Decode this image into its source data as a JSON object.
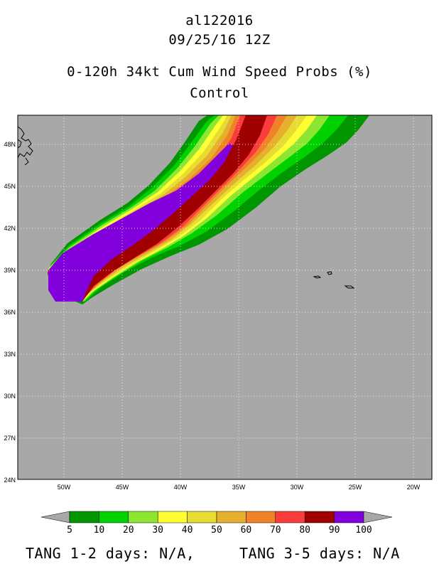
{
  "title": {
    "storm_id": "al122016",
    "datetime": "09/25/16 12Z",
    "product": "0-120h 34kt Cum Wind Speed Probs (%)",
    "run": "Control"
  },
  "map": {
    "lat_labels": [
      "48N",
      "45N",
      "42N",
      "39N",
      "36N",
      "33N",
      "30N",
      "27N",
      "24N"
    ],
    "lon_labels": [
      "50W",
      "45W",
      "40W",
      "35W",
      "30W",
      "25W",
      "20W"
    ],
    "background_color": "#a8a8a8",
    "land_outline_color": "#000000"
  },
  "legend": {
    "labels": [
      "5",
      "10",
      "20",
      "30",
      "40",
      "50",
      "60",
      "70",
      "80",
      "90",
      "100"
    ],
    "colors": [
      "#009600",
      "#00d200",
      "#8ce632",
      "#ffff32",
      "#e6dc32",
      "#e6af2d",
      "#f08228",
      "#fa3c3c",
      "#a00000",
      "#8200dc"
    ],
    "arrow_color": "#a8a8a8"
  },
  "footer": {
    "tang_1_2": "TANG 1-2 days:  N/A,",
    "tang_3_5": "TANG 3-5 days:  N/A"
  }
}
